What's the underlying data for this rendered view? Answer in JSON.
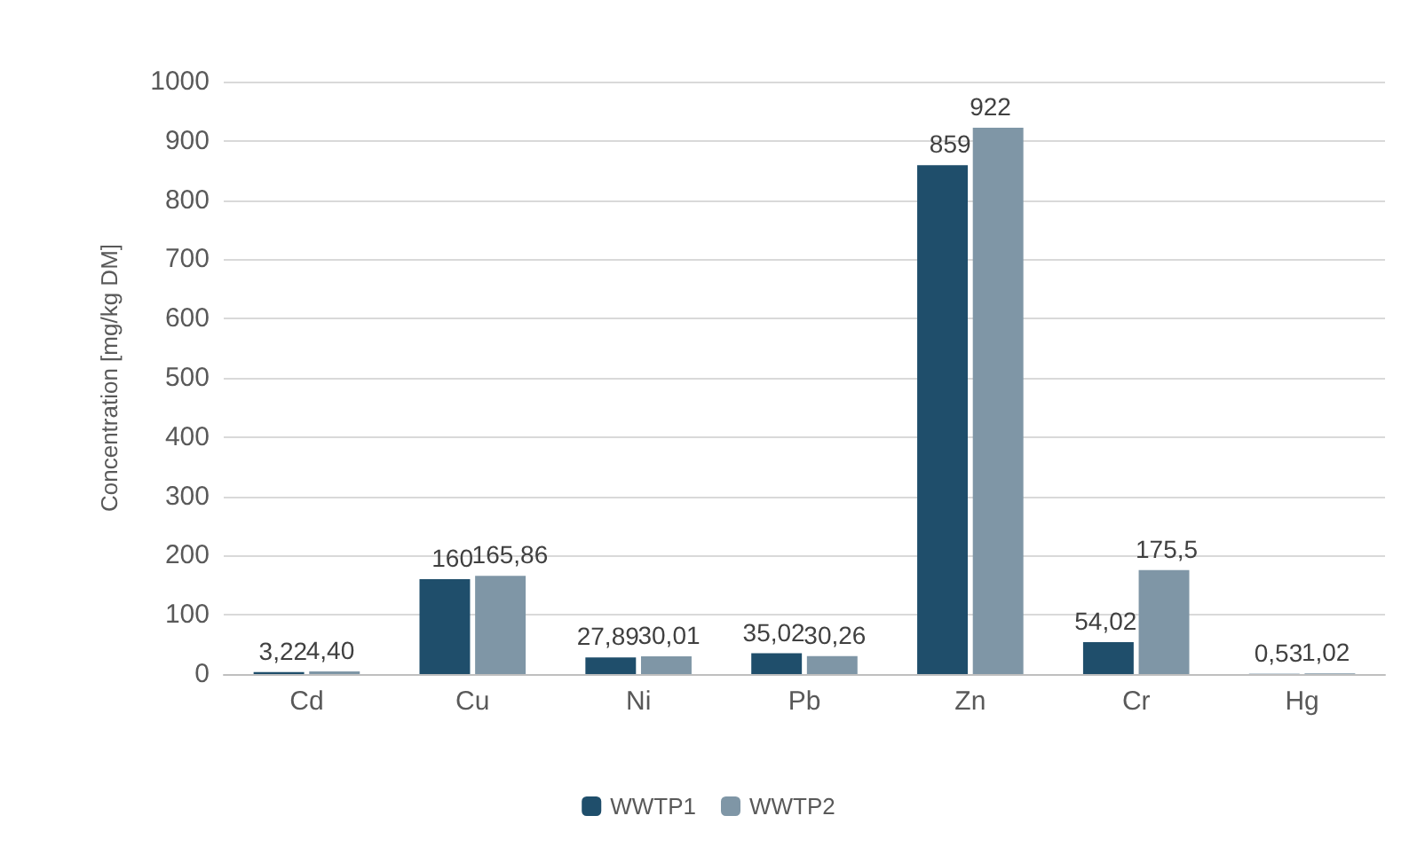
{
  "chart_data": {
    "type": "bar",
    "ylabel": "Concentration [mg/kg DM]",
    "categories": [
      "Cd",
      "Cu",
      "Ni",
      "Pb",
      "Zn",
      "Cr",
      "Hg"
    ],
    "series": [
      {
        "name": "WWTP1",
        "color": "#1f4e6b",
        "values": [
          3.22,
          160,
          27.89,
          35.02,
          859,
          54.02,
          0.53
        ],
        "value_labels": [
          "3,22",
          "160",
          "27,89",
          "35,02",
          "859",
          "54,02",
          "0,53"
        ]
      },
      {
        "name": "WWTP2",
        "color": "#7f96a6",
        "values": [
          4.4,
          165.86,
          30.01,
          30.26,
          922,
          175.5,
          1.02
        ],
        "value_labels": [
          "4,40",
          "165,86",
          "30,01",
          "30,26",
          "922",
          "175,5",
          "1,02"
        ]
      }
    ],
    "ylim": [
      0,
      1000
    ],
    "yticks": [
      0,
      100,
      200,
      300,
      400,
      500,
      600,
      700,
      800,
      900,
      1000
    ],
    "grid": "y",
    "legend": "bottom"
  }
}
